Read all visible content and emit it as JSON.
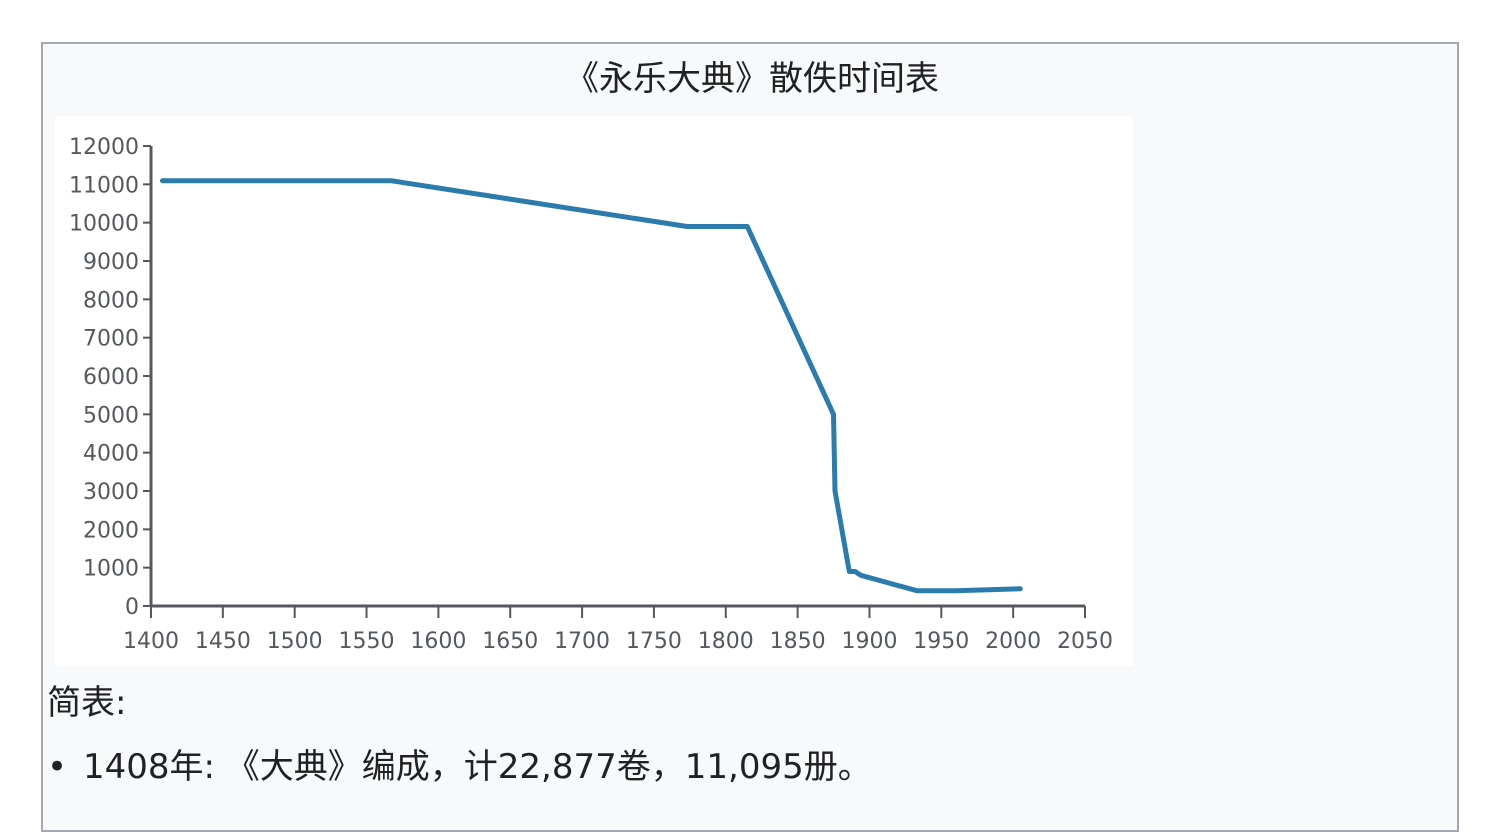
{
  "title": "《永乐大典》散佚时间表",
  "summary_label": "简表:",
  "notes": [
    "1408年: 《大典》编成，计22,877卷，11,095册。"
  ],
  "colors": {
    "line": "#2b7bac",
    "axis": "#54595d",
    "panel_border": "#a2a9b1",
    "panel_bg": "#f8f9fa"
  },
  "chart_data": {
    "type": "line",
    "title": "《永乐大典》散佚时间表",
    "xlabel": "",
    "ylabel": "",
    "xlim": [
      1400,
      2050
    ],
    "ylim": [
      0,
      12000
    ],
    "x_ticks": [
      1400,
      1450,
      1500,
      1550,
      1600,
      1650,
      1700,
      1750,
      1800,
      1850,
      1900,
      1950,
      2000,
      2050
    ],
    "y_ticks": [
      0,
      1000,
      2000,
      3000,
      4000,
      5000,
      6000,
      7000,
      8000,
      9000,
      10000,
      11000,
      12000
    ],
    "grid": false,
    "legend": "none",
    "series": [
      {
        "x": [
          1408,
          1567,
          1773,
          1815,
          1875,
          1876,
          1886,
          1890,
          1894,
          1933,
          1960,
          2005
        ],
        "y": [
          11095,
          11095,
          9900,
          9900,
          5000,
          3000,
          900,
          900,
          800,
          400,
          400,
          450
        ]
      }
    ]
  }
}
